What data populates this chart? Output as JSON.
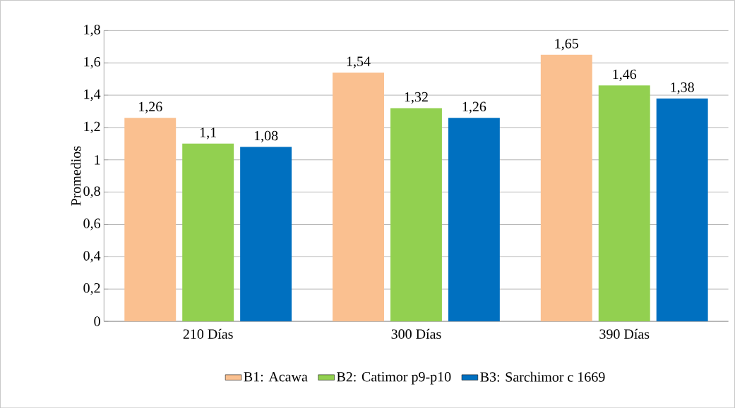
{
  "chart_data": {
    "type": "bar",
    "ylabel": "Promedios",
    "categories": [
      "210 Días",
      "300 Días",
      "390 Días"
    ],
    "series": [
      {
        "name": "B1: Acawa",
        "color": "#fac090",
        "values": [
          1.26,
          1.54,
          1.65
        ],
        "value_labels": [
          "1,26",
          "1,54",
          "1,65"
        ]
      },
      {
        "name": "B2: Catimor p9-p10",
        "color": "#92d050",
        "values": [
          1.1,
          1.32,
          1.46
        ],
        "value_labels": [
          "1,1",
          "1,32",
          "1,46"
        ]
      },
      {
        "name": "B3: Sarchimor c 1669",
        "color": "#0070c0",
        "values": [
          1.08,
          1.26,
          1.38
        ],
        "value_labels": [
          "1,08",
          "1,26",
          "1,38"
        ]
      }
    ],
    "ylim": [
      0,
      1.8
    ],
    "yticks": [
      {
        "value": 0,
        "label": "0"
      },
      {
        "value": 0.2,
        "label": "0,2"
      },
      {
        "value": 0.4,
        "label": "0,4"
      },
      {
        "value": 0.6,
        "label": "0,6"
      },
      {
        "value": 0.8,
        "label": "0,8"
      },
      {
        "value": 1,
        "label": "1"
      },
      {
        "value": 1.2,
        "label": "1,2"
      },
      {
        "value": 1.4,
        "label": "1,4"
      },
      {
        "value": 1.6,
        "label": "1,6"
      },
      {
        "value": 1.8,
        "label": "1,8"
      }
    ],
    "grid": "y",
    "legend": "bottom"
  }
}
